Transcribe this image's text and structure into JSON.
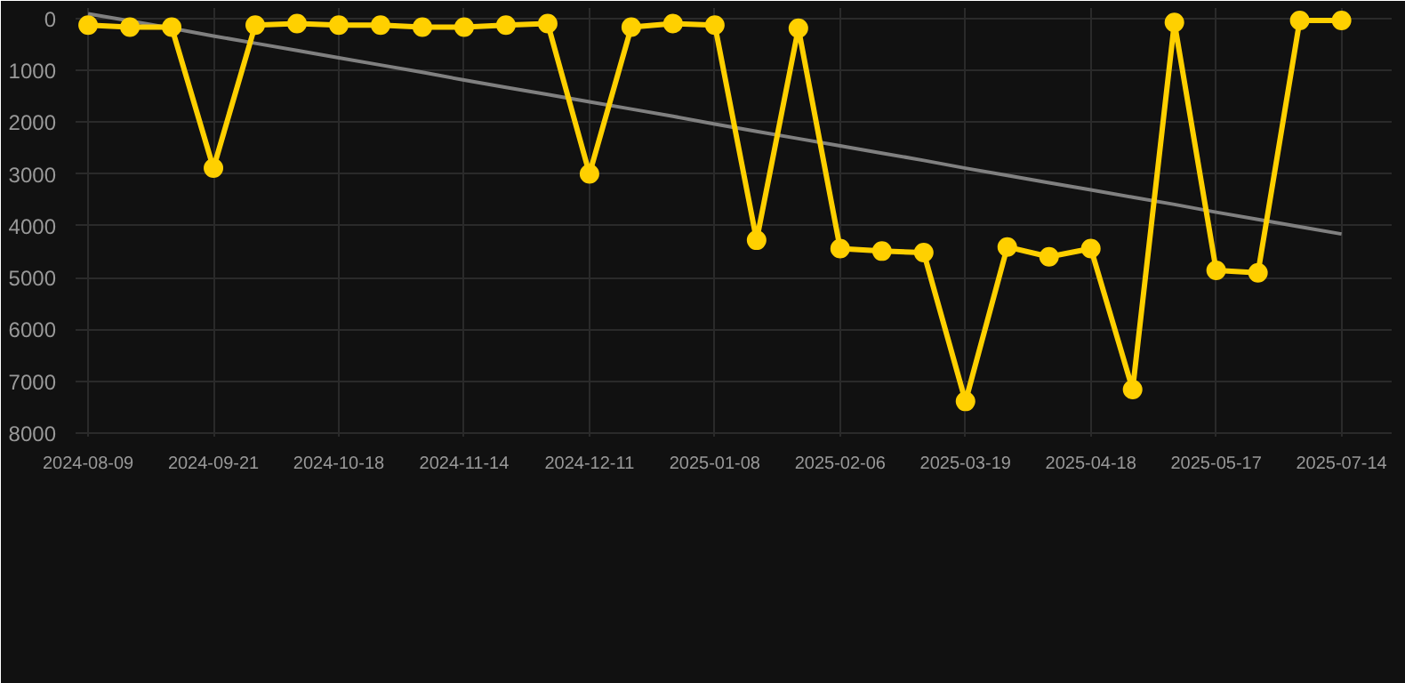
{
  "chart_data": {
    "type": "line",
    "categories": [
      "2024-08-09",
      null,
      null,
      "2024-09-21",
      null,
      null,
      "2024-10-18",
      null,
      null,
      "2024-11-14",
      null,
      null,
      "2024-12-11",
      null,
      null,
      "2025-01-08",
      null,
      null,
      "2025-02-06",
      null,
      null,
      "2025-03-19",
      null,
      null,
      "2025-04-18",
      null,
      null,
      "2025-05-17",
      null,
      null,
      "2025-07-14"
    ],
    "series": [
      {
        "color": "#ffd000",
        "values": [
          130,
          170,
          170,
          2890,
          130,
          100,
          130,
          130,
          170,
          170,
          130,
          100,
          3000,
          170,
          100,
          130,
          4280,
          190,
          4440,
          4490,
          4520,
          7390,
          4410,
          4600,
          4440,
          7160,
          80,
          4860,
          4910,
          40,
          40
        ]
      },
      {
        "type": "line",
        "color": "#808080",
        "marker": "none",
        "values": [
          -90,
          50,
          190,
          340,
          480,
          620,
          760,
          900,
          1040,
          1190,
          1330,
          1470,
          1610,
          1750,
          1890,
          2040,
          2180,
          2320,
          2460,
          2600,
          2740,
          2890,
          3030,
          3170,
          3310,
          3450,
          3590,
          3740,
          3880,
          4020,
          4160
        ]
      }
    ],
    "ylim": [
      8070,
      -200
    ],
    "yticks": [
      0,
      1000,
      2000,
      3000,
      4000,
      5000,
      6000,
      7000,
      8000
    ],
    "grid": true,
    "marker": "circle",
    "line_style": "solid"
  }
}
